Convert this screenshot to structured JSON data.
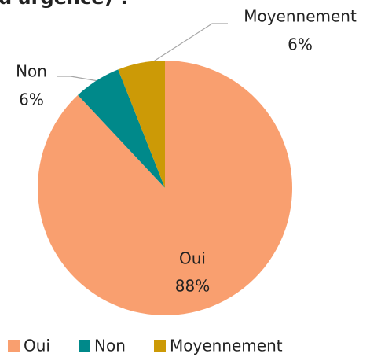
{
  "chart_data": {
    "type": "pie",
    "title": "d'urgence) ?",
    "categories": [
      "Oui",
      "Non",
      "Moyennement"
    ],
    "values": [
      88,
      6,
      6
    ],
    "value_labels": [
      "88%",
      "6%",
      "6%"
    ],
    "colors": [
      "#f99f6f",
      "#00898a",
      "#cc9a06"
    ],
    "legend": "bottom"
  }
}
